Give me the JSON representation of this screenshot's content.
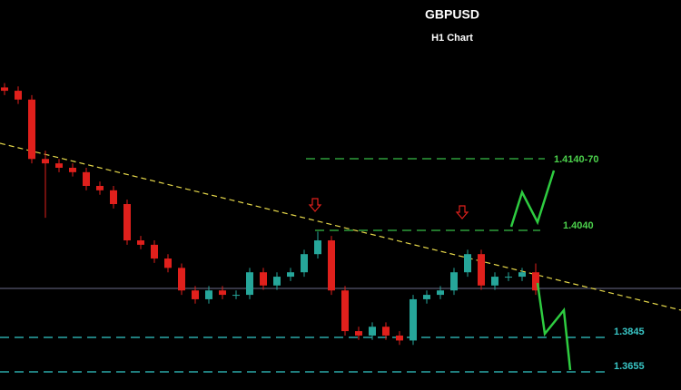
{
  "chart_data": {
    "type": "candlestick",
    "title": "GBPUSD",
    "subtitle": "H1 Chart",
    "ylim": [
      1.375,
      1.4459
    ],
    "up_color": "#26a69a",
    "down_color": "#e0201c",
    "open": [
      1.43,
      1.4294,
      1.4278,
      1.417,
      1.4162,
      1.4154,
      1.4146,
      1.4121,
      1.4113,
      1.4088,
      1.4022,
      1.4014,
      1.3989,
      1.3972,
      1.3931,
      1.3915,
      1.3931,
      1.3923,
      1.3923,
      1.3964,
      1.394,
      1.3956,
      1.3964,
      1.3997,
      1.4022,
      1.3931,
      1.3857,
      1.3849,
      1.3865,
      1.3849,
      1.384,
      1.3915,
      1.3923,
      1.3931,
      1.3964,
      1.3997,
      1.394,
      1.3956,
      1.3956,
      1.3964
    ],
    "high": [
      1.4308,
      1.4302,
      1.4286,
      1.4185,
      1.417,
      1.4162,
      1.4154,
      1.4129,
      1.4121,
      1.4096,
      1.403,
      1.4022,
      1.3997,
      1.398,
      1.3939,
      1.3939,
      1.3939,
      1.3931,
      1.3972,
      1.3972,
      1.3964,
      1.3972,
      1.4005,
      1.4038,
      1.403,
      1.3939,
      1.3865,
      1.3873,
      1.3873,
      1.3857,
      1.3923,
      1.3931,
      1.3939,
      1.3972,
      1.4005,
      1.4005,
      1.3964,
      1.3964,
      1.3972,
      1.398
    ],
    "low": [
      1.4286,
      1.427,
      1.4162,
      1.4063,
      1.4146,
      1.4138,
      1.4113,
      1.4105,
      1.408,
      1.4014,
      1.4006,
      1.3981,
      1.3964,
      1.3923,
      1.3907,
      1.3907,
      1.3915,
      1.3915,
      1.3915,
      1.3932,
      1.3932,
      1.3948,
      1.3956,
      1.3989,
      1.3923,
      1.3849,
      1.3841,
      1.3841,
      1.3841,
      1.3832,
      1.3832,
      1.3907,
      1.3915,
      1.3923,
      1.3956,
      1.3932,
      1.3932,
      1.3948,
      1.3948,
      1.3923
    ],
    "close": [
      1.4294,
      1.4278,
      1.417,
      1.4162,
      1.4154,
      1.4146,
      1.4121,
      1.4113,
      1.4088,
      1.4022,
      1.4014,
      1.3989,
      1.3972,
      1.3931,
      1.3915,
      1.3931,
      1.3923,
      1.3923,
      1.3964,
      1.394,
      1.3956,
      1.3964,
      1.3997,
      1.4022,
      1.3931,
      1.3857,
      1.3849,
      1.3865,
      1.3849,
      1.384,
      1.3915,
      1.3923,
      1.3931,
      1.3964,
      1.3997,
      1.394,
      1.3956,
      1.3956,
      1.3964,
      1.3931
    ],
    "levels": [
      "1.4140-70",
      "1.4040",
      "1.3845",
      "1.3655"
    ]
  }
}
